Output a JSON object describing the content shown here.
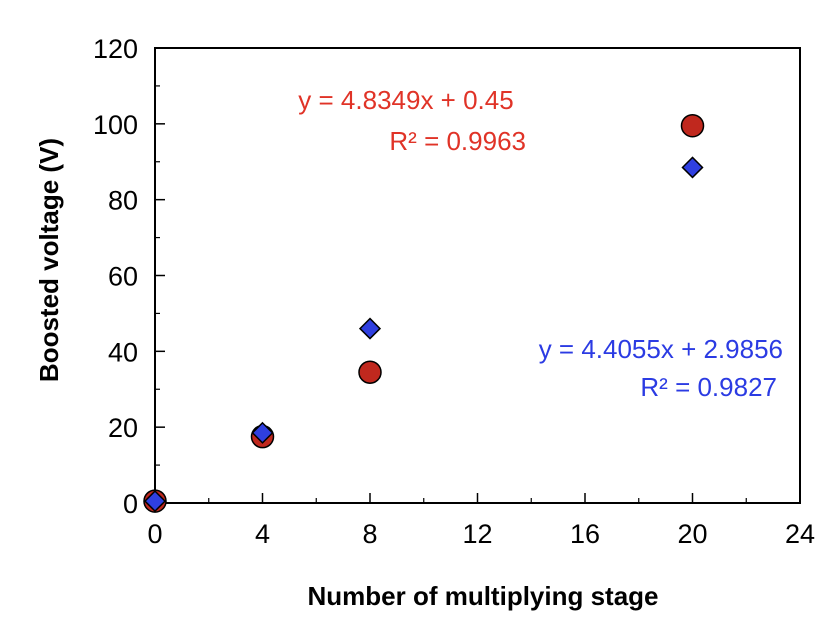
{
  "chart_data": {
    "type": "scatter",
    "xlabel": "Number of multiplying stage",
    "ylabel": "Boosted voltage (V)",
    "xlim": [
      0,
      24
    ],
    "ylim": [
      0,
      120
    ],
    "x_ticks": [
      "0",
      "4",
      "8",
      "12",
      "16",
      "20",
      "24"
    ],
    "y_ticks": [
      "0",
      "20",
      "40",
      "60",
      "80",
      "100",
      "120"
    ],
    "grid": false,
    "series": [
      {
        "marker": "circle",
        "color": "#C0281E",
        "points": [
          [
            0,
            0.5
          ],
          [
            4,
            17.5
          ],
          [
            8,
            34.5
          ],
          [
            20,
            99.5
          ]
        ],
        "trendline": {
          "equation": "y = 4.8349x + 0.45",
          "r2": "R² = 0.9963",
          "color": "#E03327"
        }
      },
      {
        "marker": "diamond",
        "color": "#2F3FE0",
        "points": [
          [
            0,
            0.5
          ],
          [
            4,
            18.5
          ],
          [
            8,
            46
          ],
          [
            20,
            88.5
          ]
        ],
        "trendline": {
          "equation": "y = 4.4055x + 2.9856",
          "r2": "R² = 0.9827",
          "color": "#2B3BE3"
        }
      }
    ]
  }
}
